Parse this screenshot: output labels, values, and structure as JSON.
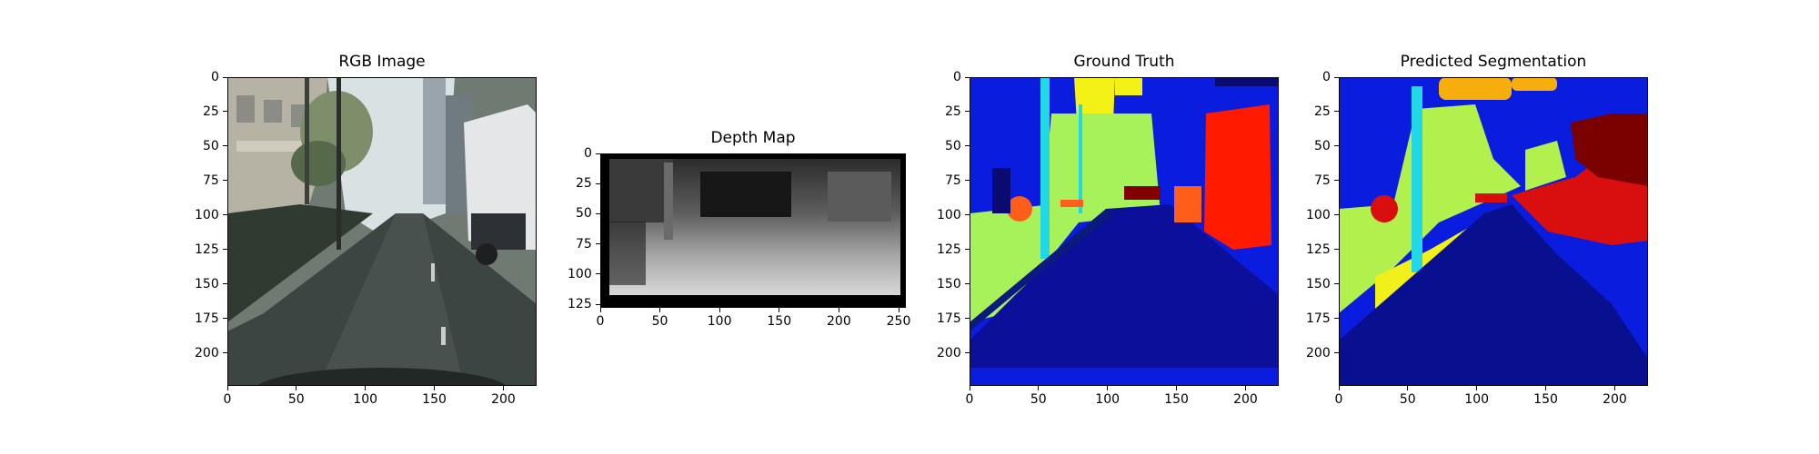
{
  "panels": [
    {
      "id": "rgb",
      "title": "RGB Image",
      "x_ticks": [
        "0",
        "50",
        "100",
        "150",
        "200"
      ],
      "y_ticks": [
        "0",
        "25",
        "50",
        "75",
        "100",
        "125",
        "150",
        "175",
        "200"
      ],
      "x_range": [
        0,
        224
      ],
      "y_range": [
        0,
        224
      ]
    },
    {
      "id": "depth",
      "title": "Depth Map",
      "x_ticks": [
        "0",
        "50",
        "100",
        "150",
        "200",
        "250"
      ],
      "y_ticks": [
        "0",
        "25",
        "50",
        "75",
        "100",
        "125"
      ],
      "x_range": [
        0,
        256
      ],
      "y_range": [
        0,
        128
      ]
    },
    {
      "id": "ground-truth",
      "title": "Ground Truth",
      "x_ticks": [
        "0",
        "50",
        "100",
        "150",
        "200"
      ],
      "y_ticks": [
        "0",
        "25",
        "50",
        "75",
        "100",
        "125",
        "150",
        "175",
        "200"
      ],
      "x_range": [
        0,
        224
      ],
      "y_range": [
        0,
        224
      ]
    },
    {
      "id": "predicted",
      "title": "Predicted Segmentation",
      "x_ticks": [
        "0",
        "50",
        "100",
        "150",
        "200"
      ],
      "y_ticks": [
        "0",
        "25",
        "50",
        "75",
        "100",
        "125",
        "150",
        "175",
        "200"
      ],
      "x_range": [
        0,
        224
      ],
      "y_range": [
        0,
        224
      ]
    }
  ]
}
